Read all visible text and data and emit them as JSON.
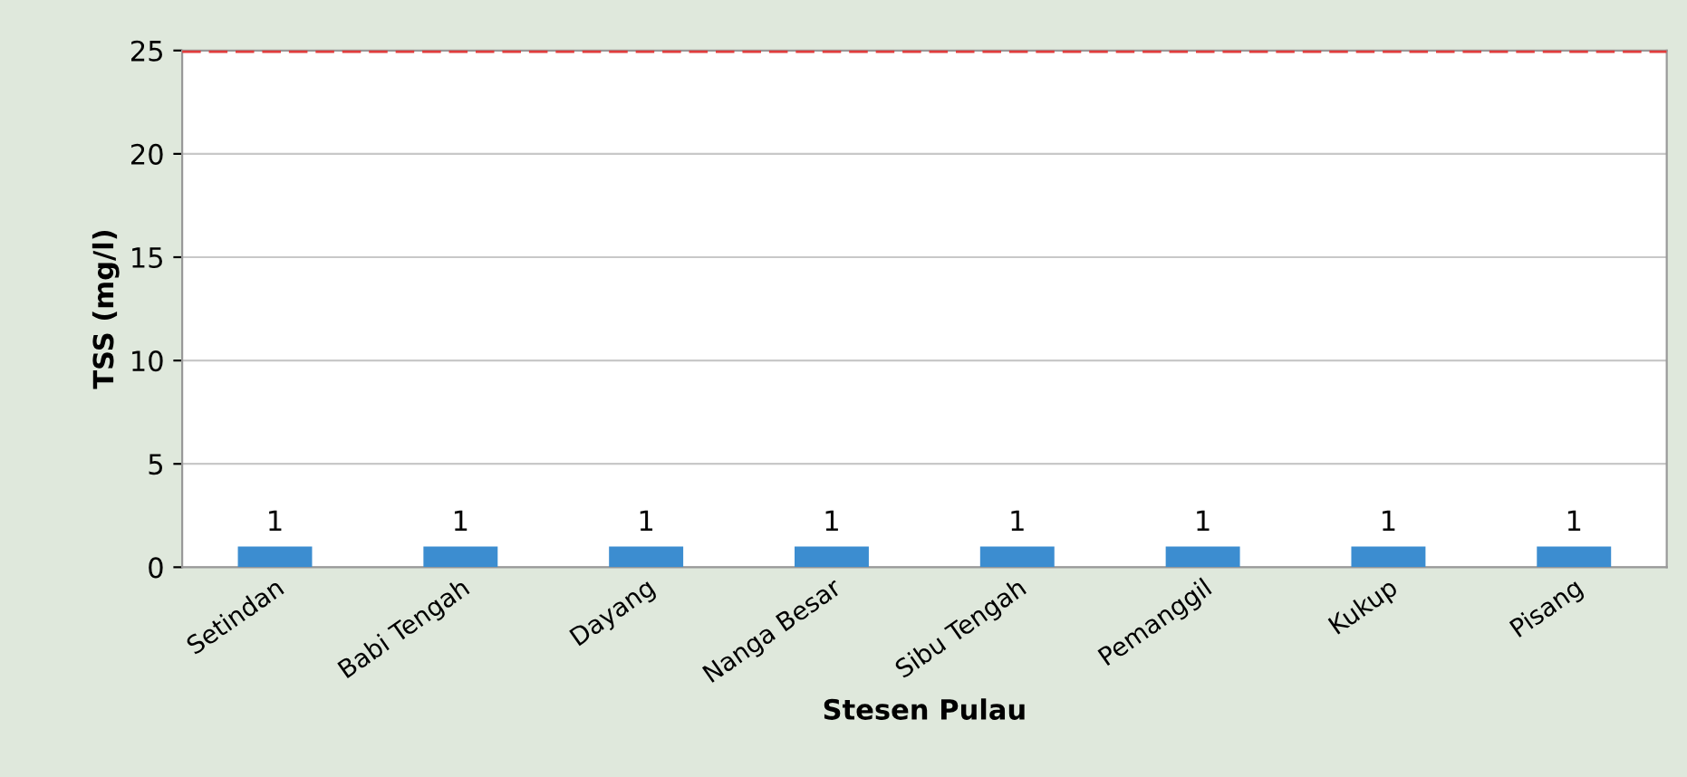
{
  "chart_data": {
    "type": "bar",
    "xlabel": "Stesen Pulau",
    "ylabel": "TSS (mg/l)",
    "categories": [
      "Setindan",
      "Babi Tengah",
      "Dayang",
      "Nanga Besar",
      "Sibu Tengah",
      "Pemanggil",
      "Kukup",
      "Pisang"
    ],
    "values": [
      1,
      1,
      1,
      1,
      1,
      1,
      1,
      1
    ],
    "color": "#3c8dd0",
    "ylim": [
      0,
      25
    ],
    "yticks": [
      0,
      5,
      10,
      15,
      20,
      25
    ],
    "grid": "y",
    "data_labels": true,
    "ref_lines": [
      {
        "axis": "y",
        "value": 25,
        "color": "#e03c3c",
        "line_style": "dashed"
      }
    ]
  }
}
